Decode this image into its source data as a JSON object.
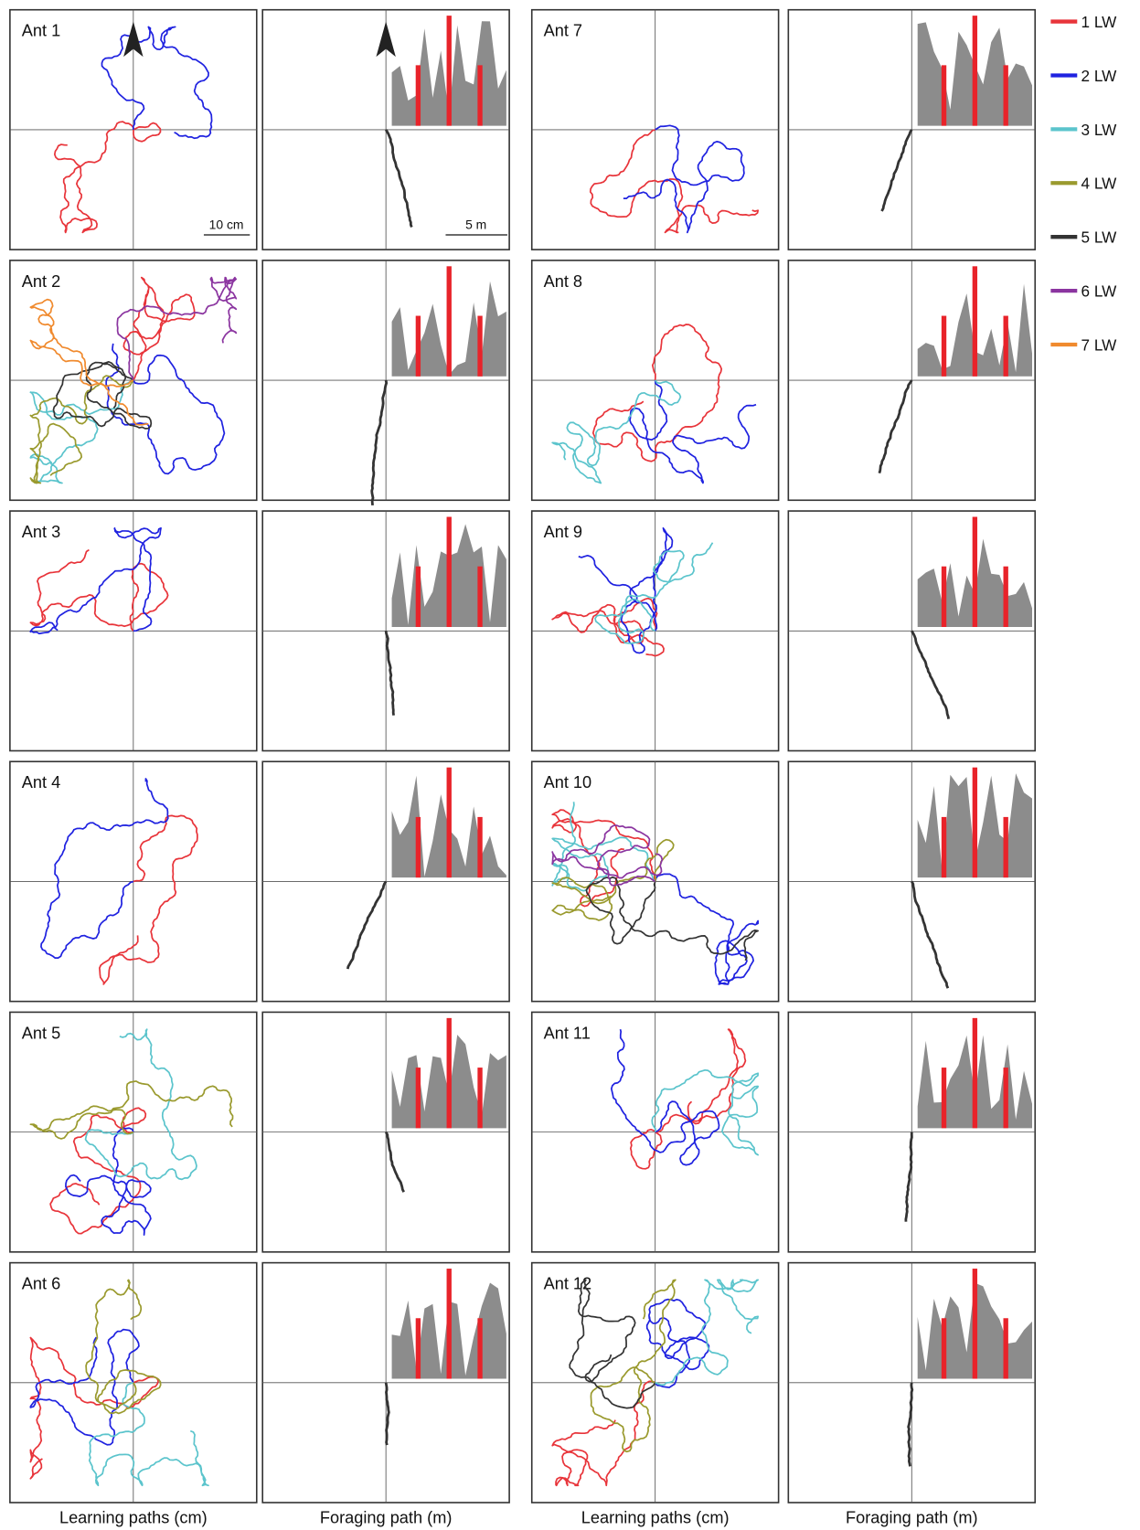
{
  "panels": [
    {
      "label": "Ant 1"
    },
    {
      "label": "Ant 2"
    },
    {
      "label": "Ant 3"
    },
    {
      "label": "Ant 4"
    },
    {
      "label": "Ant 5"
    },
    {
      "label": "Ant 6"
    },
    {
      "label": "Ant 7"
    },
    {
      "label": "Ant 8"
    },
    {
      "label": "Ant 9"
    },
    {
      "label": "Ant 10"
    },
    {
      "label": "Ant 11"
    },
    {
      "label": "Ant 12"
    }
  ],
  "scale_bars": {
    "learning": "10 cm",
    "foraging": "5 m"
  },
  "legend": {
    "items": [
      {
        "label": "1 LW",
        "color": "#e8343a"
      },
      {
        "label": "2 LW",
        "color": "#1f22e0"
      },
      {
        "label": "3 LW",
        "color": "#5bc4cc"
      },
      {
        "label": "4 LW",
        "color": "#9a9a2e"
      },
      {
        "label": "5 LW",
        "color": "#333333"
      },
      {
        "label": "6 LW",
        "color": "#8b35a0"
      },
      {
        "label": "7 LW",
        "color": "#f08a2e"
      }
    ]
  },
  "captions": [
    "Learning paths (cm)",
    "Foraging path (m)",
    "Learning paths (cm)",
    "Foraging path (m)"
  ]
}
